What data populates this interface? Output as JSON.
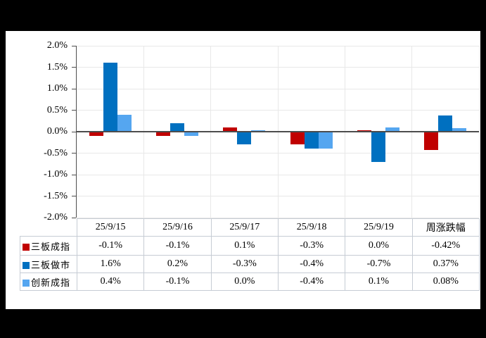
{
  "colors": {
    "background": "#000000",
    "panel": "#ffffff",
    "grid": "#e8e8e8",
    "axis": "#4d4d4d",
    "table_border": "#c6ccd4",
    "series_red": "#c00000",
    "series_blue": "#0070c0",
    "series_light_blue": "#55a6f0"
  },
  "chart_data": {
    "type": "bar",
    "title": "",
    "xlabel": "",
    "ylabel": "",
    "categories": [
      "25/9/15",
      "25/9/16",
      "25/9/17",
      "25/9/18",
      "25/9/19",
      "周涨跌幅"
    ],
    "series": [
      {
        "name": "三板成指",
        "color": "#c00000",
        "values": [
          -0.1,
          -0.1,
          0.1,
          -0.3,
          0.0,
          -0.42
        ],
        "labels": [
          "-0.1%",
          "-0.1%",
          "0.1%",
          "-0.3%",
          "0.0%",
          "-0.42%"
        ]
      },
      {
        "name": "三板做市",
        "color": "#0070c0",
        "values": [
          1.6,
          0.2,
          -0.3,
          -0.4,
          -0.7,
          0.37
        ],
        "labels": [
          "1.6%",
          "0.2%",
          "-0.3%",
          "-0.4%",
          "-0.7%",
          "0.37%"
        ]
      },
      {
        "name": "创新成指",
        "color": "#55a6f0",
        "values": [
          0.4,
          -0.1,
          0.0,
          -0.4,
          0.1,
          0.08
        ],
        "labels": [
          "0.4%",
          "-0.1%",
          "0.0%",
          "-0.4%",
          "0.1%",
          "0.08%"
        ]
      }
    ],
    "ylim": [
      -2.0,
      2.0
    ],
    "ytick_step": 0.5,
    "ytick_labels": [
      "2.0%",
      "1.5%",
      "1.0%",
      "0.5%",
      "0.0%",
      "-0.5%",
      "-1.0%",
      "-1.5%",
      "-2.0%"
    ],
    "grid": true,
    "legend_position": "table-left-column",
    "corner_label": ""
  }
}
